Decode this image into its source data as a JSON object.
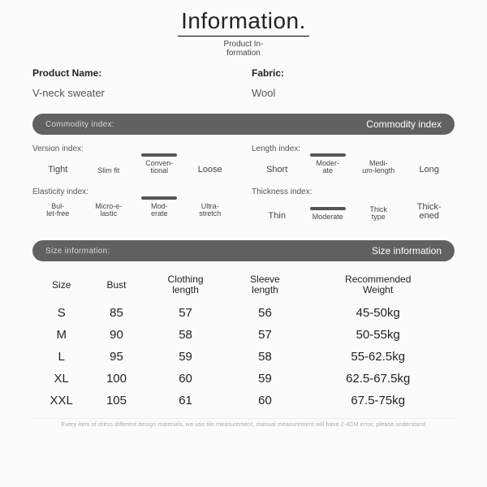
{
  "header": {
    "title": "Information.",
    "subtitle": "Product In-formation"
  },
  "product": {
    "name_label": "Product Name:",
    "name_value": "V-neck sweater",
    "fabric_label": "Fabric:",
    "fabric_value": "Wool"
  },
  "commodity_pill": {
    "left": "Commodity index:",
    "right": "Commodity index"
  },
  "indices": {
    "version": {
      "label": "Version index:",
      "options": [
        "Tight",
        "Slim fit",
        "Conven-\ntional",
        "Loose"
      ],
      "big_indices": [
        0,
        3
      ],
      "selected": 2
    },
    "length": {
      "label": "Length index:",
      "options": [
        "Short",
        "Moder-\nate",
        "Medi-\num-length",
        "Long"
      ],
      "big_indices": [
        0,
        3
      ],
      "selected": 1
    },
    "elasticity": {
      "label": "Elasticity index:",
      "options": [
        "Bul-\nlet-free",
        "Micro-e-\nlastic",
        "Mod-\nerate",
        "Ultra-\nstretch"
      ],
      "big_indices": [],
      "selected": 2
    },
    "thickness": {
      "label": "Thickness index:",
      "options": [
        "Thin",
        "Moderate",
        "Thick\ntype",
        "Thick-\nened"
      ],
      "big_indices": [
        0,
        3
      ],
      "selected": 1
    }
  },
  "size_pill": {
    "left": "Size information:",
    "right": "Size information"
  },
  "size_table": {
    "columns": [
      "Size",
      "Bust",
      "Clothing\nlength",
      "Sleeve\nlength",
      "Recommended\nWeight"
    ],
    "rows": [
      [
        "S",
        "85",
        "57",
        "56",
        "45-50kg"
      ],
      [
        "M",
        "90",
        "58",
        "57",
        "50-55kg"
      ],
      [
        "L",
        "95",
        "59",
        "58",
        "55-62.5kg"
      ],
      [
        "XL",
        "100",
        "60",
        "59",
        "62.5-67.5kg"
      ],
      [
        "XXL",
        "105",
        "61",
        "60",
        "67.5-75kg"
      ]
    ]
  },
  "footnote": "Every item of dress different design materials, we use tile measurement, manual measurement will have 2-4CM error, please understand",
  "colors": {
    "pill_bg": "#616161",
    "text": "#222222",
    "muted": "#555555",
    "bg": "#fbfbfb"
  }
}
